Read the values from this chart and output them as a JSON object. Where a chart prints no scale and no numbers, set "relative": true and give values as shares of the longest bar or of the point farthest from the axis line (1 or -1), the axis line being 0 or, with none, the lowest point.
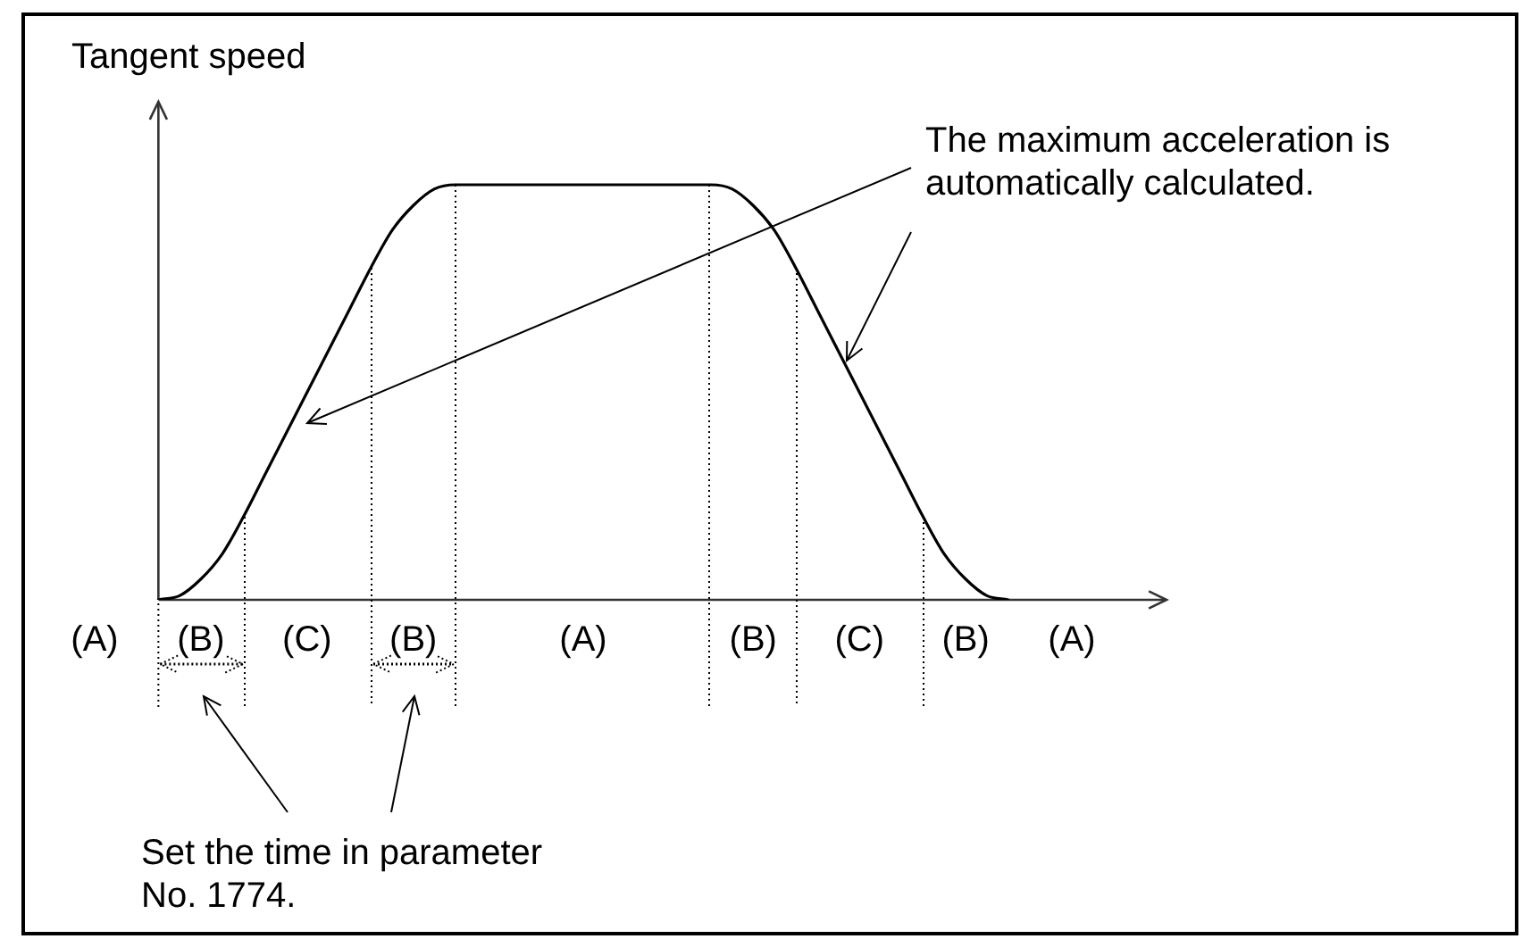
{
  "chart_data": {
    "type": "line",
    "ylabel": "Tangent speed",
    "relative": true,
    "categories": [
      "(A)",
      null,
      null,
      null,
      null,
      "(B)",
      null,
      null,
      null,
      null,
      "(C)",
      null,
      null,
      null,
      null,
      "(B)",
      null,
      null,
      null,
      null,
      null,
      null,
      null,
      "(A)",
      null,
      null,
      null,
      null,
      null,
      null,
      null,
      "(B)",
      null,
      null,
      null,
      null,
      "(C)",
      null,
      null,
      null,
      null,
      "(B)",
      null,
      null,
      null,
      null,
      "(A)"
    ],
    "series": [
      {
        "color": "#000000",
        "values": [
          null,
          null,
          null,
          0,
          0.01,
          0.05,
          0.11,
          0.2,
          0.3,
          0.4,
          0.5,
          0.6,
          0.7,
          0.8,
          0.89,
          0.95,
          0.99,
          1,
          1,
          1,
          1,
          1,
          1,
          1,
          1,
          1,
          1,
          1,
          1,
          1,
          0.99,
          0.95,
          0.89,
          0.8,
          0.7,
          0.6,
          0.5,
          0.4,
          0.3,
          0.2,
          0.11,
          0.05,
          0.01,
          0,
          null,
          null,
          null
        ]
      }
    ],
    "annotations": [
      "The maximum acceleration is automatically calculated.",
      "Set the time in parameter No. 1774."
    ],
    "grid": false,
    "legend": false,
    "tick_labels": "x",
    "marker": "none",
    "line_style": "solid"
  }
}
